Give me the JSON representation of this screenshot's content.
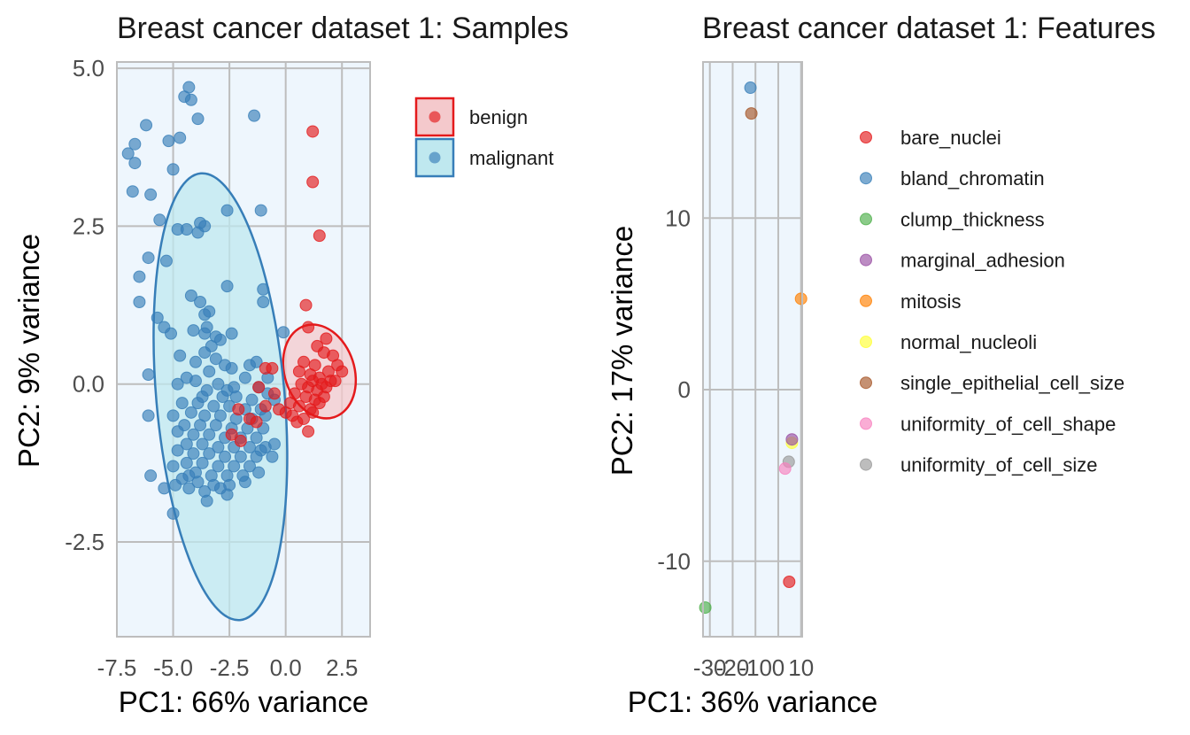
{
  "chart_data": [
    {
      "type": "scatter",
      "title": "Breast cancer dataset 1: Samples",
      "xlabel": "PC1: 66% variance",
      "ylabel": "PC2: 9% variance",
      "xlim": [
        -7.5,
        3.75
      ],
      "ylim": [
        -4.0,
        5.1
      ],
      "xticks": [
        -7.5,
        -5.0,
        -2.5,
        0.0,
        2.5
      ],
      "xtick_labels": [
        "-7.5",
        "-5.0",
        "-2.5",
        "0.0",
        "2.5"
      ],
      "yticks": [
        -2.5,
        0.0,
        2.5,
        5.0
      ],
      "ytick_labels": [
        "-2.5",
        "0.0",
        "2.5",
        "5.0"
      ],
      "grid": true,
      "legend_position": "right",
      "series": [
        {
          "name": "benign",
          "color": "#e41a1c",
          "ellipse_fill": "#f4c9cc",
          "ellipse": {
            "cx": 1.5,
            "cy": 0.2,
            "rx": 1.55,
            "ry": 0.76,
            "angle": 18
          },
          "points": [
            [
              1.2,
              4.0
            ],
            [
              1.2,
              3.2
            ],
            [
              1.5,
              2.35
            ],
            [
              0.9,
              1.25
            ],
            [
              1.0,
              0.9
            ],
            [
              1.8,
              0.72
            ],
            [
              1.4,
              0.6
            ],
            [
              0.8,
              0.35
            ],
            [
              1.7,
              0.5
            ],
            [
              2.1,
              0.45
            ],
            [
              1.3,
              0.3
            ],
            [
              2.3,
              0.3
            ],
            [
              0.6,
              0.2
            ],
            [
              1.1,
              0.15
            ],
            [
              1.9,
              0.2
            ],
            [
              2.5,
              0.2
            ],
            [
              1.5,
              0.1
            ],
            [
              1.2,
              0.05
            ],
            [
              2.0,
              0.05
            ],
            [
              0.7,
              0.0
            ],
            [
              1.6,
              0.0
            ],
            [
              2.2,
              0.05
            ],
            [
              1.0,
              -0.05
            ],
            [
              1.4,
              -0.1
            ],
            [
              1.8,
              -0.05
            ],
            [
              0.4,
              -0.15
            ],
            [
              0.9,
              -0.2
            ],
            [
              1.3,
              -0.25
            ],
            [
              1.7,
              -0.2
            ],
            [
              0.2,
              -0.3
            ],
            [
              0.6,
              -0.35
            ],
            [
              1.1,
              -0.4
            ],
            [
              1.5,
              -0.3
            ],
            [
              0.0,
              -0.45
            ],
            [
              0.8,
              -0.55
            ],
            [
              1.2,
              -0.45
            ],
            [
              -0.3,
              -0.4
            ],
            [
              0.3,
              -0.5
            ],
            [
              1.0,
              -0.75
            ],
            [
              -0.5,
              -0.15
            ],
            [
              -0.9,
              -0.35
            ],
            [
              -1.3,
              -0.6
            ],
            [
              -1.6,
              -0.55
            ],
            [
              -2.1,
              -0.4
            ],
            [
              -2.4,
              -0.8
            ],
            [
              -2.0,
              -0.9
            ],
            [
              -1.2,
              -0.05
            ],
            [
              -0.9,
              0.25
            ],
            [
              -0.6,
              0.25
            ],
            [
              0.5,
              -0.6
            ]
          ]
        },
        {
          "name": "malignant",
          "color": "#377eb8",
          "ellipse_fill": "#bfe8ef",
          "ellipse": {
            "cx": -2.9,
            "cy": -0.2,
            "rx": 2.85,
            "ry": 3.55,
            "angle": 5
          },
          "points": [
            [
              -4.3,
              4.7
            ],
            [
              -4.5,
              4.55
            ],
            [
              -4.2,
              4.5
            ],
            [
              -1.4,
              4.25
            ],
            [
              -3.9,
              4.2
            ],
            [
              -6.2,
              4.1
            ],
            [
              -4.7,
              3.9
            ],
            [
              -5.2,
              3.85
            ],
            [
              -6.7,
              3.8
            ],
            [
              -7.0,
              3.65
            ],
            [
              -6.7,
              3.5
            ],
            [
              -5.0,
              3.4
            ],
            [
              -6.8,
              3.05
            ],
            [
              -6.0,
              3.0
            ],
            [
              -2.6,
              2.75
            ],
            [
              -1.1,
              2.75
            ],
            [
              -5.6,
              2.6
            ],
            [
              -4.8,
              2.45
            ],
            [
              -4.4,
              2.45
            ],
            [
              -3.6,
              2.5
            ],
            [
              -3.8,
              2.55
            ],
            [
              -3.9,
              2.4
            ],
            [
              -6.1,
              2.0
            ],
            [
              -5.3,
              1.95
            ],
            [
              -6.5,
              1.7
            ],
            [
              -2.6,
              1.55
            ],
            [
              -1.0,
              1.5
            ],
            [
              -4.2,
              1.4
            ],
            [
              -6.5,
              1.3
            ],
            [
              -3.8,
              1.3
            ],
            [
              -1.0,
              1.3
            ],
            [
              -3.4,
              1.15
            ],
            [
              -5.7,
              1.05
            ],
            [
              -3.6,
              1.1
            ],
            [
              -5.4,
              0.9
            ],
            [
              -4.1,
              0.85
            ],
            [
              -3.5,
              0.9
            ],
            [
              -3.6,
              0.8
            ],
            [
              -2.4,
              0.8
            ],
            [
              -3.1,
              0.75
            ],
            [
              -5.1,
              0.8
            ],
            [
              -0.1,
              0.82
            ],
            [
              -3.3,
              0.6
            ],
            [
              -2.9,
              0.7
            ],
            [
              -3.6,
              0.5
            ],
            [
              -4.7,
              0.45
            ],
            [
              -3.1,
              0.4
            ],
            [
              -4.0,
              0.35
            ],
            [
              -3.4,
              0.2
            ],
            [
              -2.7,
              0.3
            ],
            [
              -1.3,
              0.35
            ],
            [
              -1.6,
              0.3
            ],
            [
              -2.4,
              0.25
            ],
            [
              -1.8,
              0.1
            ],
            [
              -0.8,
              0.1
            ],
            [
              -6.1,
              0.15
            ],
            [
              -4.4,
              0.1
            ],
            [
              -4.0,
              0.05
            ],
            [
              -3.0,
              0.0
            ],
            [
              -2.6,
              -0.1
            ],
            [
              -1.2,
              -0.05
            ],
            [
              -0.8,
              -0.15
            ],
            [
              -4.8,
              0.0
            ],
            [
              -3.5,
              -0.1
            ],
            [
              -2.8,
              -0.2
            ],
            [
              -2.2,
              -0.2
            ],
            [
              -1.5,
              -0.25
            ],
            [
              -0.5,
              -0.25
            ],
            [
              -4.6,
              -0.3
            ],
            [
              -3.9,
              -0.3
            ],
            [
              -3.2,
              -0.35
            ],
            [
              -2.5,
              -0.35
            ],
            [
              -1.8,
              -0.4
            ],
            [
              -1.1,
              -0.4
            ],
            [
              -5.0,
              -0.5
            ],
            [
              -4.2,
              -0.45
            ],
            [
              -3.6,
              -0.5
            ],
            [
              -2.9,
              -0.5
            ],
            [
              -2.2,
              -0.55
            ],
            [
              -1.5,
              -0.55
            ],
            [
              -0.9,
              -0.5
            ],
            [
              -6.1,
              -0.5
            ],
            [
              -4.5,
              -0.65
            ],
            [
              -3.8,
              -0.65
            ],
            [
              -3.1,
              -0.65
            ],
            [
              -2.4,
              -0.7
            ],
            [
              -1.7,
              -0.7
            ],
            [
              -1.0,
              -0.7
            ],
            [
              -4.8,
              -0.75
            ],
            [
              -4.1,
              -0.8
            ],
            [
              -3.4,
              -0.8
            ],
            [
              -2.7,
              -0.85
            ],
            [
              -2.0,
              -0.85
            ],
            [
              -1.3,
              -0.85
            ],
            [
              -4.4,
              -0.95
            ],
            [
              -3.7,
              -0.95
            ],
            [
              -3.0,
              -1.0
            ],
            [
              -2.3,
              -1.0
            ],
            [
              -1.6,
              -1.0
            ],
            [
              -0.9,
              -1.0
            ],
            [
              -4.8,
              -1.05
            ],
            [
              -4.1,
              -1.1
            ],
            [
              -3.4,
              -1.1
            ],
            [
              -2.7,
              -1.15
            ],
            [
              -2.0,
              -1.15
            ],
            [
              -1.3,
              -1.15
            ],
            [
              -0.6,
              -1.15
            ],
            [
              -4.4,
              -1.25
            ],
            [
              -3.7,
              -1.25
            ],
            [
              -3.0,
              -1.3
            ],
            [
              -2.3,
              -1.3
            ],
            [
              -1.6,
              -1.3
            ],
            [
              -5.0,
              -1.3
            ],
            [
              -4.0,
              -1.4
            ],
            [
              -3.3,
              -1.45
            ],
            [
              -2.6,
              -1.45
            ],
            [
              -1.9,
              -1.45
            ],
            [
              -1.2,
              -1.4
            ],
            [
              -4.6,
              -1.5
            ],
            [
              -3.9,
              -1.55
            ],
            [
              -3.2,
              -1.6
            ],
            [
              -2.5,
              -1.6
            ],
            [
              -4.3,
              -1.65
            ],
            [
              -3.6,
              -1.7
            ],
            [
              -2.9,
              -1.65
            ],
            [
              -4.9,
              -1.6
            ],
            [
              -6.0,
              -1.45
            ],
            [
              -5.4,
              -1.65
            ],
            [
              -3.5,
              -1.85
            ],
            [
              -2.6,
              -1.75
            ],
            [
              -5.0,
              -2.05
            ],
            [
              -4.3,
              -1.45
            ],
            [
              -1.8,
              -1.55
            ],
            [
              -0.5,
              -0.95
            ],
            [
              -1.1,
              -1.05
            ],
            [
              -3.7,
              -0.2
            ],
            [
              -2.3,
              -0.05
            ]
          ]
        }
      ]
    },
    {
      "type": "scatter",
      "title": "Breast cancer dataset 1: Features",
      "xlabel": "PC1: 36% variance",
      "ylabel": "PC2: 17% variance",
      "xlim": [
        -33.0,
        10.5
      ],
      "ylim": [
        -14.4,
        19.1
      ],
      "xticks": [
        -30,
        -20,
        -10,
        0,
        10
      ],
      "xtick_labels": [
        "-30",
        "-20",
        "-10",
        "0",
        "10"
      ],
      "yticks": [
        -10,
        0,
        10
      ],
      "ytick_labels": [
        "-10",
        "0",
        "10"
      ],
      "grid": true,
      "legend_position": "right",
      "series": [
        {
          "name": "bare_nuclei",
          "color": "#e41a1c",
          "points": [
            [
              4.8,
              -11.2
            ]
          ]
        },
        {
          "name": "bland_chromatin",
          "color": "#377eb8",
          "points": [
            [
              -12.2,
              17.6
            ]
          ]
        },
        {
          "name": "clump_thickness",
          "color": "#4daf4a",
          "points": [
            [
              -32.0,
              -12.7
            ]
          ]
        },
        {
          "name": "marginal_adhesion",
          "color": "#984ea3",
          "points": [
            [
              6.0,
              -2.9
            ]
          ]
        },
        {
          "name": "mitosis",
          "color": "#ff7f00",
          "points": [
            [
              10.0,
              5.3
            ]
          ]
        },
        {
          "name": "normal_nucleoli",
          "color": "#ffff33",
          "points": [
            [
              6.0,
              -3.1
            ]
          ]
        },
        {
          "name": "single_epithelial_cell_size",
          "color": "#a65628",
          "points": [
            [
              -11.8,
              16.1
            ]
          ]
        },
        {
          "name": "uniformity_of_cell_shape",
          "color": "#f781bf",
          "points": [
            [
              3.0,
              -4.6
            ]
          ]
        },
        {
          "name": "uniformity_of_cell_size",
          "color": "#999999",
          "points": [
            [
              4.6,
              -4.2
            ]
          ]
        }
      ]
    }
  ]
}
